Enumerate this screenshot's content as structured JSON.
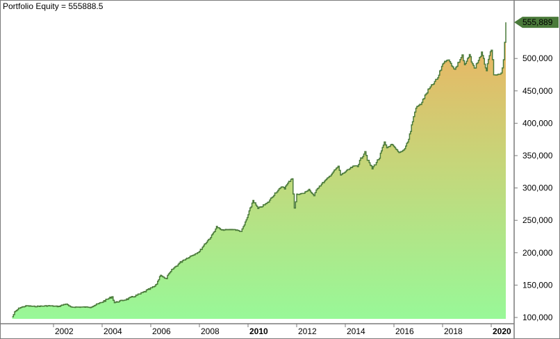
{
  "header": {
    "title": "Portfolio Equity = 555888.5"
  },
  "colors": {
    "line": "#4a7a3a",
    "fill_top": "#f0b060",
    "fill_bottom": "#98f898",
    "axis": "#7a7a7a",
    "last_value_marker": "#4a7a3a"
  },
  "last_value_label": "555,889",
  "chart_data": {
    "type": "area",
    "title": "Portfolio Equity = 555888.5",
    "xlabel": "",
    "ylabel": "",
    "ylim": [
      100000,
      590000
    ],
    "xlim": [
      2000.3,
      2020.6
    ],
    "grid": false,
    "legend": "none",
    "y_ticks": [
      100000,
      150000,
      200000,
      250000,
      300000,
      350000,
      400000,
      450000,
      500000
    ],
    "y_tick_labels": [
      "100,000",
      "150,000",
      "200,000",
      "250,000",
      "300,000",
      "350,000",
      "400,000",
      "450,000",
      "500,000"
    ],
    "x_ticks": [
      2002,
      2004,
      2006,
      2008,
      2010,
      2012,
      2014,
      2016,
      2018,
      2020
    ],
    "x_tick_labels": [
      "2002",
      "2004",
      "2006",
      "2008",
      "2010",
      "2012",
      "2014",
      "2016",
      "2018",
      "2020"
    ],
    "x_tick_bold": [
      "2010",
      "2020"
    ],
    "last_value": 555888.5,
    "series": [
      {
        "name": "Portfolio Equity",
        "x": [
          2000.3,
          2000.4,
          2000.6,
          2000.9,
          2001.2,
          2001.8,
          2002.2,
          2002.5,
          2002.7,
          2003.5,
          2003.9,
          2004.4,
          2004.5,
          2005.0,
          2005.6,
          2006.2,
          2006.4,
          2006.6,
          2006.9,
          2007.3,
          2007.7,
          2008.0,
          2008.2,
          2008.5,
          2008.7,
          2008.9,
          2009.4,
          2009.7,
          2009.8,
          2010.0,
          2010.2,
          2010.4,
          2010.8,
          2011.1,
          2011.4,
          2011.5,
          2011.8,
          2011.9,
          2012.0,
          2012.3,
          2012.5,
          2012.7,
          2012.8,
          2013.1,
          2013.3,
          2013.5,
          2013.7,
          2013.8,
          2014.0,
          2014.3,
          2014.5,
          2014.8,
          2014.9,
          2015.1,
          2015.4,
          2015.6,
          2015.7,
          2015.9,
          2016.2,
          2016.4,
          2016.6,
          2016.8,
          2016.9,
          2017.1,
          2017.4,
          2017.8,
          2018.0,
          2018.2,
          2018.5,
          2018.8,
          2018.9,
          2019.1,
          2019.3,
          2019.6,
          2019.8,
          2020.0,
          2020.1,
          2020.4,
          2020.5,
          2020.6
        ],
        "values": [
          101000,
          108000,
          115000,
          118000,
          117000,
          118000,
          117000,
          121000,
          116000,
          116000,
          122000,
          132000,
          123000,
          128000,
          137000,
          149000,
          166000,
          159000,
          175000,
          188000,
          196000,
          202000,
          213000,
          226000,
          240000,
          235000,
          236000,
          233000,
          239000,
          258000,
          281000,
          268000,
          277000,
          292000,
          302000,
          300000,
          316000,
          268000,
          290000,
          292000,
          298000,
          287000,
          298000,
          309000,
          316000,
          325000,
          333000,
          320000,
          325000,
          333000,
          335000,
          357000,
          344000,
          330000,
          347000,
          370000,
          362000,
          367000,
          354000,
          359000,
          375000,
          410000,
          424000,
          430000,
          451000,
          470000,
          492000,
          499000,
          483000,
          505000,
          489000,
          505000,
          484000,
          508000,
          482000,
          516000,
          474000,
          476000,
          495000,
          555888
        ]
      }
    ]
  }
}
